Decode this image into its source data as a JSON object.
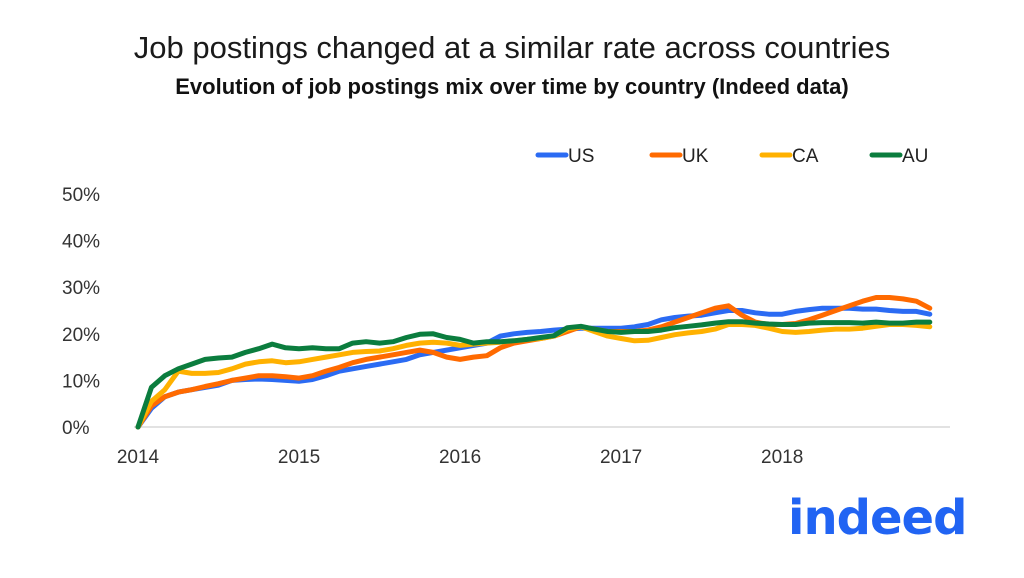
{
  "header": {
    "title": "Job postings changed at a similar rate across countries",
    "subtitle": "Evolution of job postings mix over time by country (Indeed data)"
  },
  "logo": {
    "text": "indeed",
    "color": "#2164f3"
  },
  "chart_data": {
    "type": "line",
    "title": "Job postings changed at a similar rate across countries",
    "subtitle": "Evolution of job postings mix over time by country (Indeed data)",
    "x_frequency": "monthly",
    "x_start": "2014-01",
    "x_end": "2018-12",
    "x_tick_labels": [
      "2014",
      "2015",
      "2016",
      "2017",
      "2018"
    ],
    "y_tick_labels": [
      "0%",
      "10%",
      "20%",
      "30%",
      "40%",
      "50%"
    ],
    "ylim": [
      0,
      50
    ],
    "y_unit": "%",
    "grid": false,
    "legend_placement": "top-right",
    "series": [
      {
        "name": "US",
        "color": "#2b6bf3",
        "values": [
          0,
          4,
          6.5,
          7.5,
          8,
          8.5,
          9,
          10,
          10.2,
          10.3,
          10.2,
          10,
          9.8,
          10.2,
          11,
          12,
          12.5,
          13,
          13.5,
          14,
          14.5,
          15.5,
          16,
          16.5,
          17,
          17.5,
          18,
          19.5,
          20,
          20.3,
          20.5,
          20.8,
          21,
          21.2,
          21.2,
          21.2,
          21.2,
          21.5,
          22,
          23,
          23.5,
          23.8,
          24,
          24.5,
          25,
          25,
          24.5,
          24.2,
          24.2,
          24.8,
          25.2,
          25.5,
          25.5,
          25.5,
          25.3,
          25.3,
          25,
          24.8,
          24.8,
          24.2
        ]
      },
      {
        "name": "UK",
        "color": "#ff6a00",
        "values": [
          0,
          4.5,
          6.5,
          7.5,
          8,
          8.7,
          9.3,
          10,
          10.5,
          11,
          11,
          10.8,
          10.5,
          11,
          12,
          12.8,
          13.8,
          14.5,
          15,
          15.5,
          16,
          16.5,
          16,
          15,
          14.5,
          15,
          15.3,
          17,
          18,
          18.5,
          19,
          19.5,
          20.5,
          21.5,
          21,
          20.5,
          20.5,
          20.5,
          20.8,
          21.5,
          22.5,
          23.5,
          24.5,
          25.5,
          26,
          24,
          22.5,
          22,
          22,
          22.2,
          23,
          24,
          25,
          26,
          27,
          27.8,
          27.8,
          27.5,
          27,
          25.5
        ]
      },
      {
        "name": "CA",
        "color": "#ffb100",
        "values": [
          0,
          5.5,
          8,
          12,
          11.5,
          11.5,
          11.7,
          12.5,
          13.5,
          14,
          14.2,
          13.8,
          14,
          14.5,
          15,
          15.5,
          16,
          16.2,
          16.3,
          16.8,
          17.5,
          18,
          18.2,
          18,
          17.5,
          17.8,
          18,
          18.2,
          18.5,
          18.8,
          19,
          19.5,
          21,
          21.5,
          20.5,
          19.5,
          19,
          18.5,
          18.6,
          19.2,
          19.8,
          20.2,
          20.5,
          21,
          22,
          22,
          21.8,
          21.2,
          20.5,
          20.3,
          20.5,
          20.8,
          21,
          21,
          21.2,
          21.6,
          22,
          22,
          21.8,
          21.5
        ]
      },
      {
        "name": "AU",
        "color": "#0b7d3e",
        "values": [
          0,
          8.5,
          11,
          12.5,
          13.5,
          14.5,
          14.8,
          15,
          16,
          16.8,
          17.8,
          17,
          16.8,
          17,
          16.8,
          16.8,
          18,
          18.3,
          18,
          18.3,
          19.2,
          19.9,
          20,
          19.2,
          18.8,
          18,
          18.3,
          18.3,
          18.5,
          18.8,
          19.2,
          19.6,
          21.3,
          21.6,
          21,
          20.5,
          20.3,
          20.5,
          20.5,
          20.8,
          21.3,
          21.6,
          21.9,
          22.3,
          22.6,
          22.6,
          22.3,
          22.1,
          22,
          22,
          22.3,
          22.4,
          22.4,
          22.4,
          22.3,
          22.5,
          22.3,
          22.3,
          22.5,
          22.5
        ]
      }
    ]
  }
}
